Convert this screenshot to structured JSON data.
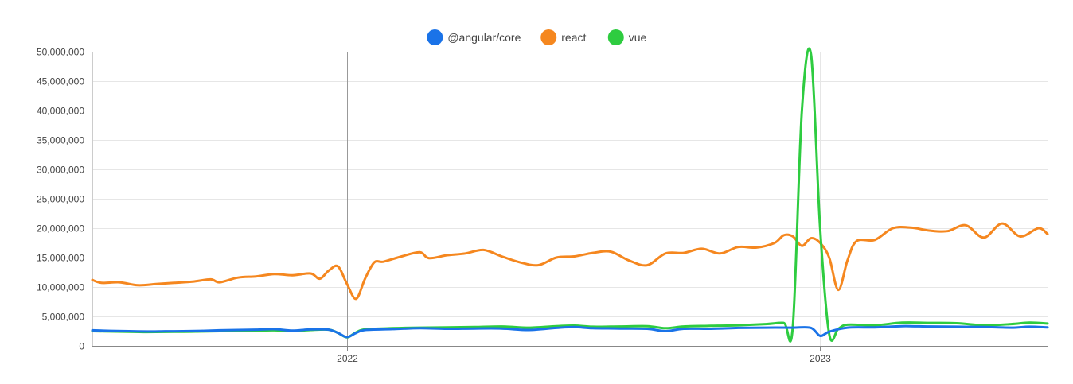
{
  "chart_data": {
    "type": "line",
    "title": "",
    "xlabel": "",
    "ylabel": "",
    "x_range": [
      "2021-06-20",
      "2023-06-25"
    ],
    "ylim": [
      0,
      50000000
    ],
    "y_ticks": [
      {
        "value": 0,
        "label": "0"
      },
      {
        "value": 5000000,
        "label": "5,000,000"
      },
      {
        "value": 10000000,
        "label": "10,000,000"
      },
      {
        "value": 15000000,
        "label": "15,000,000"
      },
      {
        "value": 20000000,
        "label": "20,000,000"
      },
      {
        "value": 25000000,
        "label": "25,000,000"
      },
      {
        "value": 30000000,
        "label": "30,000,000"
      },
      {
        "value": 35000000,
        "label": "35,000,000"
      },
      {
        "value": 40000000,
        "label": "40,000,000"
      },
      {
        "value": 45000000,
        "label": "45,000,000"
      },
      {
        "value": 50000000,
        "label": "50,000,000"
      }
    ],
    "x_ticks": [
      {
        "date": "2022-01-02",
        "label": "2022"
      },
      {
        "date": "2023-01-01",
        "label": "2023"
      }
    ],
    "grid": true,
    "legend_position": "top-center",
    "series": [
      {
        "name": "@angular/core",
        "color": "#1a73e8",
        "points": [
          [
            "2021-06-20",
            2650000
          ],
          [
            "2021-07-04",
            2550000
          ],
          [
            "2021-07-18",
            2500000
          ],
          [
            "2021-08-01",
            2450000
          ],
          [
            "2021-08-15",
            2480000
          ],
          [
            "2021-08-29",
            2500000
          ],
          [
            "2021-09-12",
            2550000
          ],
          [
            "2021-09-26",
            2650000
          ],
          [
            "2021-10-10",
            2700000
          ],
          [
            "2021-10-24",
            2750000
          ],
          [
            "2021-11-07",
            2850000
          ],
          [
            "2021-11-21",
            2600000
          ],
          [
            "2021-12-05",
            2800000
          ],
          [
            "2021-12-19",
            2750000
          ],
          [
            "2021-12-26",
            2200000
          ],
          [
            "2022-01-02",
            1500000
          ],
          [
            "2022-01-09",
            2200000
          ],
          [
            "2022-01-16",
            2700000
          ],
          [
            "2022-02-06",
            2850000
          ],
          [
            "2022-02-27",
            3000000
          ],
          [
            "2022-03-20",
            2900000
          ],
          [
            "2022-04-10",
            2950000
          ],
          [
            "2022-05-01",
            2950000
          ],
          [
            "2022-05-22",
            2700000
          ],
          [
            "2022-06-12",
            3050000
          ],
          [
            "2022-06-26",
            3200000
          ],
          [
            "2022-07-10",
            3000000
          ],
          [
            "2022-07-31",
            2950000
          ],
          [
            "2022-08-21",
            2900000
          ],
          [
            "2022-09-04",
            2500000
          ],
          [
            "2022-09-18",
            2900000
          ],
          [
            "2022-10-09",
            2900000
          ],
          [
            "2022-10-30",
            3050000
          ],
          [
            "2022-11-20",
            3100000
          ],
          [
            "2022-12-11",
            3100000
          ],
          [
            "2022-12-25",
            3050000
          ],
          [
            "2023-01-01",
            1700000
          ],
          [
            "2023-01-08",
            2400000
          ],
          [
            "2023-01-22",
            3100000
          ],
          [
            "2023-02-12",
            3150000
          ],
          [
            "2023-03-05",
            3350000
          ],
          [
            "2023-03-26",
            3300000
          ],
          [
            "2023-04-16",
            3250000
          ],
          [
            "2023-05-07",
            3200000
          ],
          [
            "2023-05-28",
            3100000
          ],
          [
            "2023-06-11",
            3250000
          ],
          [
            "2023-06-25",
            3150000
          ]
        ]
      },
      {
        "name": "react",
        "color": "#f5871f",
        "points": [
          [
            "2021-06-20",
            11200000
          ],
          [
            "2021-06-27",
            10700000
          ],
          [
            "2021-07-11",
            10800000
          ],
          [
            "2021-07-25",
            10300000
          ],
          [
            "2021-08-08",
            10500000
          ],
          [
            "2021-08-22",
            10700000
          ],
          [
            "2021-09-05",
            10900000
          ],
          [
            "2021-09-19",
            11300000
          ],
          [
            "2021-09-26",
            10800000
          ],
          [
            "2021-10-10",
            11600000
          ],
          [
            "2021-10-24",
            11800000
          ],
          [
            "2021-11-07",
            12200000
          ],
          [
            "2021-11-21",
            12000000
          ],
          [
            "2021-12-05",
            12300000
          ],
          [
            "2021-12-12",
            11400000
          ],
          [
            "2021-12-19",
            12800000
          ],
          [
            "2021-12-26",
            13500000
          ],
          [
            "2022-01-02",
            10500000
          ],
          [
            "2022-01-09",
            8000000
          ],
          [
            "2022-01-16",
            11500000
          ],
          [
            "2022-01-23",
            14200000
          ],
          [
            "2022-01-30",
            14300000
          ],
          [
            "2022-02-13",
            15200000
          ],
          [
            "2022-02-27",
            15900000
          ],
          [
            "2022-03-06",
            14900000
          ],
          [
            "2022-03-20",
            15400000
          ],
          [
            "2022-04-03",
            15700000
          ],
          [
            "2022-04-17",
            16300000
          ],
          [
            "2022-05-01",
            15200000
          ],
          [
            "2022-05-15",
            14200000
          ],
          [
            "2022-05-29",
            13700000
          ],
          [
            "2022-06-12",
            15000000
          ],
          [
            "2022-06-26",
            15200000
          ],
          [
            "2022-07-10",
            15800000
          ],
          [
            "2022-07-24",
            16000000
          ],
          [
            "2022-08-07",
            14500000
          ],
          [
            "2022-08-21",
            13700000
          ],
          [
            "2022-09-04",
            15700000
          ],
          [
            "2022-09-18",
            15800000
          ],
          [
            "2022-10-02",
            16500000
          ],
          [
            "2022-10-16",
            15700000
          ],
          [
            "2022-10-30",
            16800000
          ],
          [
            "2022-11-13",
            16700000
          ],
          [
            "2022-11-27",
            17500000
          ],
          [
            "2022-12-04",
            18800000
          ],
          [
            "2022-12-11",
            18600000
          ],
          [
            "2022-12-18",
            17000000
          ],
          [
            "2022-12-25",
            18300000
          ],
          [
            "2023-01-01",
            17500000
          ],
          [
            "2023-01-08",
            15000000
          ],
          [
            "2023-01-15",
            9500000
          ],
          [
            "2023-01-22",
            14500000
          ],
          [
            "2023-01-29",
            17800000
          ],
          [
            "2023-02-12",
            18000000
          ],
          [
            "2023-02-26",
            20000000
          ],
          [
            "2023-03-12",
            20100000
          ],
          [
            "2023-03-26",
            19600000
          ],
          [
            "2023-04-09",
            19500000
          ],
          [
            "2023-04-23",
            20500000
          ],
          [
            "2023-05-07",
            18400000
          ],
          [
            "2023-05-21",
            20800000
          ],
          [
            "2023-06-04",
            18600000
          ],
          [
            "2023-06-18",
            20000000
          ],
          [
            "2023-06-25",
            19000000
          ]
        ]
      },
      {
        "name": "vue",
        "color": "#2ecc40",
        "points": [
          [
            "2021-06-20",
            2500000
          ],
          [
            "2021-07-04",
            2450000
          ],
          [
            "2021-07-18",
            2400000
          ],
          [
            "2021-08-01",
            2350000
          ],
          [
            "2021-08-15",
            2380000
          ],
          [
            "2021-08-29",
            2400000
          ],
          [
            "2021-09-12",
            2450000
          ],
          [
            "2021-09-26",
            2500000
          ],
          [
            "2021-10-10",
            2550000
          ],
          [
            "2021-10-24",
            2600000
          ],
          [
            "2021-11-07",
            2650000
          ],
          [
            "2021-11-21",
            2500000
          ],
          [
            "2021-12-05",
            2700000
          ],
          [
            "2021-12-19",
            2750000
          ],
          [
            "2021-12-26",
            2200000
          ],
          [
            "2022-01-02",
            1450000
          ],
          [
            "2022-01-09",
            2300000
          ],
          [
            "2022-01-16",
            2800000
          ],
          [
            "2022-02-06",
            3000000
          ],
          [
            "2022-02-27",
            3100000
          ],
          [
            "2022-03-20",
            3150000
          ],
          [
            "2022-04-10",
            3200000
          ],
          [
            "2022-05-01",
            3300000
          ],
          [
            "2022-05-22",
            3100000
          ],
          [
            "2022-06-12",
            3350000
          ],
          [
            "2022-06-26",
            3450000
          ],
          [
            "2022-07-10",
            3250000
          ],
          [
            "2022-07-31",
            3300000
          ],
          [
            "2022-08-21",
            3350000
          ],
          [
            "2022-09-04",
            3000000
          ],
          [
            "2022-09-18",
            3300000
          ],
          [
            "2022-10-09",
            3400000
          ],
          [
            "2022-10-30",
            3500000
          ],
          [
            "2022-11-20",
            3700000
          ],
          [
            "2022-12-04",
            3900000
          ],
          [
            "2022-12-11",
            3300000
          ],
          [
            "2022-12-18",
            40000000
          ],
          [
            "2022-12-25",
            49500000
          ],
          [
            "2023-01-01",
            20000000
          ],
          [
            "2023-01-08",
            2000000
          ],
          [
            "2023-01-15",
            2900000
          ],
          [
            "2023-01-22",
            3600000
          ],
          [
            "2023-02-12",
            3500000
          ],
          [
            "2023-03-05",
            3950000
          ],
          [
            "2023-03-26",
            3900000
          ],
          [
            "2023-04-16",
            3850000
          ],
          [
            "2023-05-07",
            3500000
          ],
          [
            "2023-05-28",
            3700000
          ],
          [
            "2023-06-11",
            3950000
          ],
          [
            "2023-06-25",
            3800000
          ]
        ]
      }
    ]
  }
}
